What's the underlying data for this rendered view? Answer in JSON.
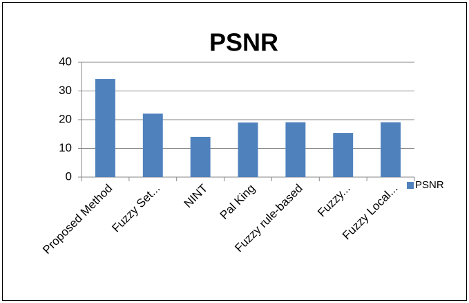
{
  "chart_data": {
    "type": "bar",
    "title": "PSNR",
    "categories": [
      "Proposed Method",
      "Fuzzy Set...",
      "NINT",
      "Pal King",
      "Fuzzy rule-based",
      "Fuzzy...",
      "Fuzzy Local..."
    ],
    "series": [
      {
        "name": "PSNR",
        "color": "#4f81bd",
        "values": [
          34.2,
          22.1,
          14,
          19,
          19.1,
          15.4,
          19.1
        ]
      }
    ],
    "ylim": [
      0,
      40
    ],
    "yticks": [
      0,
      10,
      20,
      30,
      40
    ],
    "grid": true,
    "legend": "right"
  }
}
